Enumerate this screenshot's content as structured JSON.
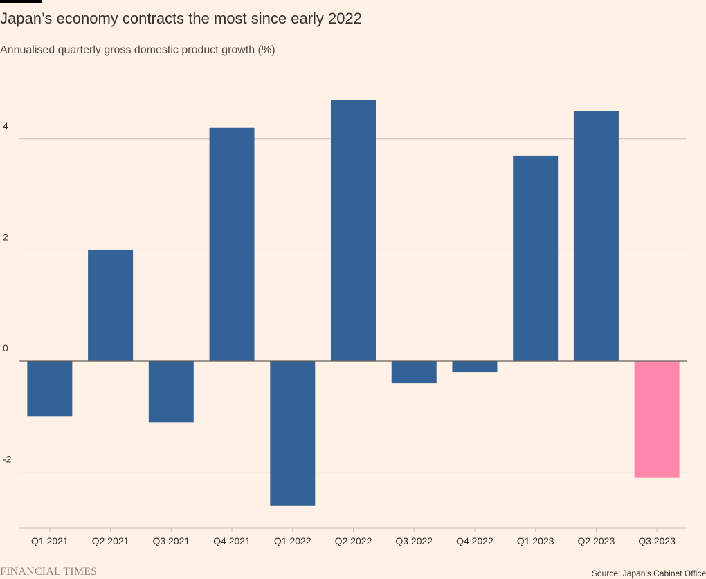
{
  "title": "Japan’s economy contracts the most since early 2022",
  "subtitle": "Annualised quarterly gross domestic product growth (%)",
  "source": "Source: Japan’s Cabinet Office",
  "brand": "FINANCIAL TIMES",
  "colors": {
    "background": "#fff1e5",
    "bar": "#336396",
    "highlight": "#ff86ab",
    "grid": "#ccc1b7",
    "zero_line": "#66605c",
    "text": "#33302e"
  },
  "chart_data": {
    "type": "bar",
    "categories": [
      "Q1 2021",
      "Q2 2021",
      "Q3 2021",
      "Q4 2021",
      "Q1 2022",
      "Q2 2022",
      "Q3 2022",
      "Q4 2022",
      "Q1 2023",
      "Q2 2023",
      "Q3 2023"
    ],
    "values": [
      -1.0,
      2.0,
      -1.1,
      4.2,
      -2.6,
      4.7,
      -0.4,
      -0.2,
      3.7,
      4.5,
      -2.1
    ],
    "highlight_index": 10,
    "y_ticks": [
      -2,
      0,
      2,
      4
    ],
    "y_tick_labels": [
      "-2",
      "0",
      "2",
      "4"
    ],
    "ylim": [
      -3,
      5.4
    ],
    "grid": true
  }
}
